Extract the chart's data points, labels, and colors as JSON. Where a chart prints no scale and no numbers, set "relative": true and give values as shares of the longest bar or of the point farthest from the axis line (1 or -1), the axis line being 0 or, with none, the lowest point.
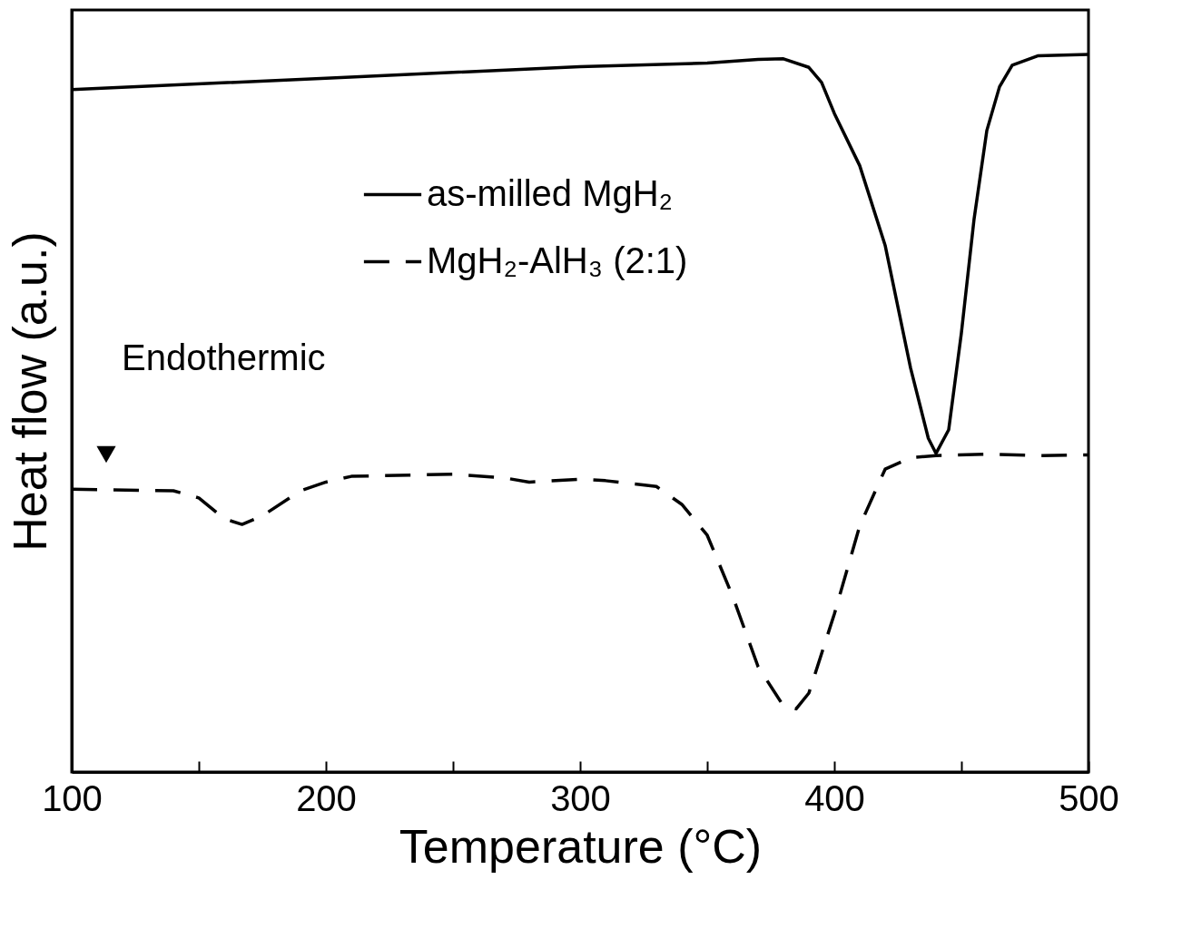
{
  "chart_data": {
    "type": "line",
    "relative": true,
    "xlabel": "Temperature (°C)",
    "ylabel": "Heat flow (a.u.)",
    "xlim": [
      100,
      500
    ],
    "xticks": [
      100,
      {
        "value": 150,
        "label": null
      },
      200,
      {
        "value": 250,
        "label": null
      },
      300,
      {
        "value": 350,
        "label": null
      },
      400,
      {
        "value": 450,
        "label": null
      },
      500
    ],
    "legend": "top",
    "grid": false,
    "marker": "none",
    "annotations": [
      "Endothermic"
    ],
    "series": [
      {
        "name": "as-milled MgH₂",
        "color": "#000000",
        "line_style": "solid",
        "x": [
          100,
          200,
          300,
          350,
          370,
          380,
          390,
          395,
          400,
          410,
          420,
          430,
          437,
          440,
          445,
          450,
          455,
          460,
          465,
          470,
          480,
          500
        ],
        "values": [
          0.951,
          0.967,
          0.983,
          0.988,
          0.993,
          0.994,
          0.982,
          0.961,
          0.918,
          0.845,
          0.734,
          0.563,
          0.465,
          0.444,
          0.477,
          0.612,
          0.771,
          0.894,
          0.955,
          0.985,
          0.998,
          1
        ]
      },
      {
        "name": "MgH₂-AlH₃ (2:1)",
        "color": "#000000",
        "line_style": "dashed",
        "x": [
          100,
          140,
          150,
          160,
          167,
          175,
          190,
          200,
          210,
          250,
          270,
          280,
          300,
          310,
          330,
          340,
          350,
          360,
          370,
          380,
          385,
          390,
          400,
          410,
          420,
          430,
          440,
          460,
          480,
          500
        ],
        "values": [
          0.394,
          0.392,
          0.382,
          0.353,
          0.345,
          0.357,
          0.392,
          0.404,
          0.412,
          0.415,
          0.41,
          0.404,
          0.408,
          0.406,
          0.398,
          0.373,
          0.33,
          0.245,
          0.147,
          0.092,
          0.088,
          0.11,
          0.22,
          0.343,
          0.422,
          0.438,
          0.441,
          0.443,
          0.441,
          0.442
        ]
      }
    ]
  }
}
